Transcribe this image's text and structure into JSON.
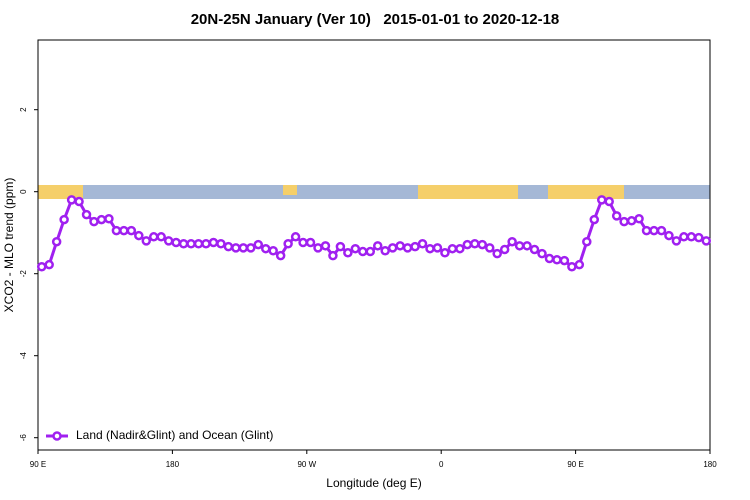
{
  "chart_data": {
    "type": "line",
    "title": "20N-25N January (Ver 10)   2015-01-01 to 2020-12-18",
    "x_label": "Longitude (deg E)",
    "y_label": "XCO2 - MLO trend (ppm)",
    "xlim": [
      90,
      540
    ],
    "xticks": [
      {
        "value": 90,
        "label": "90 E"
      },
      180,
      {
        "value": 270,
        "label": "90 W"
      },
      {
        "value": 360,
        "label": "0"
      },
      {
        "value": 450,
        "label": "90 E"
      },
      {
        "value": 540,
        "label": "180"
      }
    ],
    "ylim": [
      -6.3,
      3.7
    ],
    "yticks": [
      -6,
      -4,
      -2,
      0,
      2
    ],
    "legend": "bottomleft",
    "x": [
      92.5,
      97.5,
      102.5,
      107.5,
      112.5,
      117.5,
      122.5,
      127.5,
      132.5,
      137.5,
      142.5,
      147.5,
      152.5,
      157.5,
      162.5,
      167.5,
      172.5,
      177.5,
      182.5,
      187.5,
      192.5,
      197.5,
      202.5,
      207.5,
      212.5,
      217.5,
      222.5,
      227.5,
      232.5,
      237.5,
      242.5,
      247.5,
      252.5,
      257.5,
      262.5,
      267.5,
      272.5,
      277.5,
      282.5,
      287.5,
      292.5,
      297.5,
      302.5,
      307.5,
      312.5,
      317.5,
      322.5,
      327.5,
      332.5,
      337.5,
      342.5,
      347.5,
      352.5,
      357.5,
      362.5,
      367.5,
      372.5,
      377.5,
      382.5,
      387.5,
      392.5,
      397.5,
      402.5,
      407.5,
      412.5,
      417.5,
      422.5,
      427.5,
      432.5,
      437.5,
      442.5,
      447.5,
      452.5,
      457.5,
      462.5,
      467.5,
      472.5,
      477.5,
      482.5,
      487.5,
      492.5,
      497.5,
      502.5,
      507.5,
      512.5,
      517.5,
      522.5,
      527.5,
      532.5,
      537.5
    ],
    "series": [
      {
        "name": "Land (Nadir&Glint) and Ocean (Glint)",
        "color": "#a020f0",
        "values": [
          -1.83,
          -1.78,
          -1.22,
          -0.68,
          -0.2,
          -0.24,
          -0.56,
          -0.73,
          -0.68,
          -0.66,
          -0.95,
          -0.95,
          -0.95,
          -1.07,
          -1.2,
          -1.1,
          -1.1,
          -1.2,
          -1.24,
          -1.27,
          -1.27,
          -1.27,
          -1.27,
          -1.24,
          -1.27,
          -1.34,
          -1.37,
          -1.37,
          -1.37,
          -1.29,
          -1.39,
          -1.44,
          -1.56,
          -1.27,
          -1.1,
          -1.24,
          -1.24,
          -1.37,
          -1.32,
          -1.56,
          -1.34,
          -1.49,
          -1.39,
          -1.46,
          -1.46,
          -1.32,
          -1.44,
          -1.37,
          -1.32,
          -1.37,
          -1.34,
          -1.27,
          -1.39,
          -1.37,
          -1.49,
          -1.39,
          -1.39,
          -1.29,
          -1.27,
          -1.29,
          -1.37,
          -1.51,
          -1.41,
          -1.22,
          -1.32,
          -1.32,
          -1.41,
          -1.51,
          -1.63,
          -1.66,
          -1.68,
          -1.83,
          -1.78,
          -1.22,
          -0.68,
          -0.2,
          -0.24,
          -0.59,
          -0.73,
          -0.71,
          -0.66,
          -0.95,
          -0.95,
          -0.95,
          -1.07,
          -1.2,
          -1.1,
          -1.1,
          -1.12,
          -1.2
        ]
      }
    ]
  }
}
